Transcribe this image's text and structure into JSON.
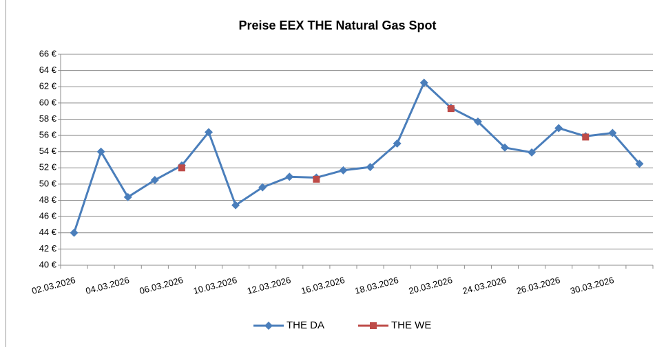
{
  "chart_data": {
    "type": "line",
    "title": "Preise EEX THE Natural Gas Spot",
    "categories": [
      "02.03.2026",
      null,
      "04.03.2026",
      null,
      "06.03.2026",
      null,
      "10.03.2026",
      null,
      "12.03.2026",
      null,
      "16.03.2026",
      null,
      "18.03.2026",
      null,
      "20.03.2026",
      null,
      "24.03.2026",
      null,
      "26.03.2026",
      null,
      "30.03.2026",
      null
    ],
    "series": [
      {
        "name": "THE DA",
        "color": "#4a7ebb",
        "marker": "diamond",
        "values": [
          44.0,
          54.0,
          48.4,
          50.5,
          52.3,
          56.4,
          47.4,
          49.6,
          50.9,
          50.8,
          51.7,
          52.1,
          55.0,
          62.5,
          59.4,
          57.7,
          54.5,
          53.9,
          56.9,
          55.9,
          56.3,
          52.5
        ]
      },
      {
        "name": "THE WE",
        "color": "#be4b48",
        "marker": "square",
        "values": [
          null,
          null,
          null,
          null,
          52.0,
          null,
          null,
          null,
          null,
          50.6,
          null,
          null,
          null,
          null,
          59.3,
          null,
          null,
          null,
          null,
          55.8,
          null,
          null
        ]
      }
    ],
    "ylim": [
      40,
      66
    ],
    "yticks": [
      {
        "value": 40,
        "label": "40 €"
      },
      {
        "value": 42,
        "label": "42 €"
      },
      {
        "value": 44,
        "label": "44 €"
      },
      {
        "value": 46,
        "label": "46 €"
      },
      {
        "value": 48,
        "label": "48 €"
      },
      {
        "value": 50,
        "label": "50 €"
      },
      {
        "value": 52,
        "label": "52 €"
      },
      {
        "value": 54,
        "label": "54 €"
      },
      {
        "value": 56,
        "label": "56 €"
      },
      {
        "value": 58,
        "label": "58 €"
      },
      {
        "value": 60,
        "label": "60 €"
      },
      {
        "value": 62,
        "label": "62 €"
      },
      {
        "value": 64,
        "label": "64 €"
      },
      {
        "value": 66,
        "label": "66 €"
      }
    ],
    "grid": true,
    "legend": "bottom"
  }
}
